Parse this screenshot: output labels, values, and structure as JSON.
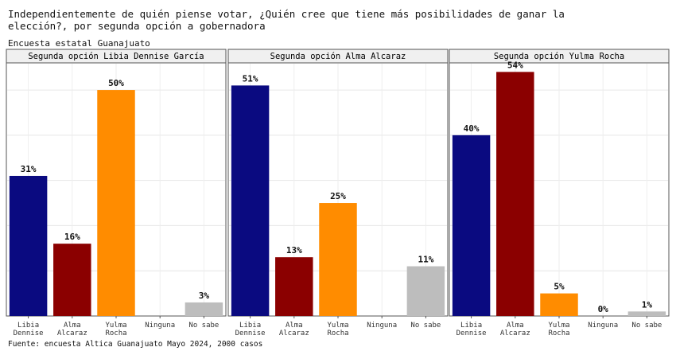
{
  "title": "Independientemente de quién piense votar, ¿Quién cree que tiene más posibilidades de ganar la elección?, por segunda opción a gobernadora",
  "subtitle": "Encuesta estatal Guanajuato",
  "caption": "Fuente: encuesta Altica Guanajuato Mayo 2024, 2000 casos",
  "colors": {
    "Libia Dennise": "#0a0a80",
    "Alma Alcaraz": "#8b0000",
    "Yulma Rocha": "#ff8c00",
    "Ninguna": "#1f1f1f",
    "No sabe": "#bdbdbd"
  },
  "chart_data": [
    {
      "type": "bar",
      "title": "Segunda opción Libia Dennise García",
      "categories": [
        "Libia\nDennise",
        "Alma\nAlcaraz",
        "Yulma\nRocha",
        "Ninguna",
        "No sabe"
      ],
      "values": [
        31,
        16,
        50,
        0,
        3
      ],
      "labels": [
        "31%",
        "16%",
        "50%",
        "",
        "3%"
      ],
      "ylim": [
        0,
        56
      ],
      "grid": true
    },
    {
      "type": "bar",
      "title": "Segunda opción  Alma Alcaraz",
      "categories": [
        "Libia\nDennise",
        "Alma\nAlcaraz",
        "Yulma\nRocha",
        "Ninguna",
        "No sabe"
      ],
      "values": [
        51,
        13,
        25,
        0,
        11
      ],
      "labels": [
        "51%",
        "13%",
        "25%",
        "",
        "11%"
      ],
      "ylim": [
        0,
        56
      ],
      "grid": true
    },
    {
      "type": "bar",
      "title": "Segunda opción Yulma Rocha",
      "categories": [
        "Libia\nDennise",
        "Alma\nAlcaraz",
        "Yulma\nRocha",
        "Ninguna",
        "No sabe"
      ],
      "values": [
        40,
        54,
        5,
        0,
        1
      ],
      "labels": [
        "40%",
        "54%",
        "5%",
        "0%",
        "1%"
      ],
      "ylim": [
        0,
        56
      ],
      "grid": true
    }
  ]
}
